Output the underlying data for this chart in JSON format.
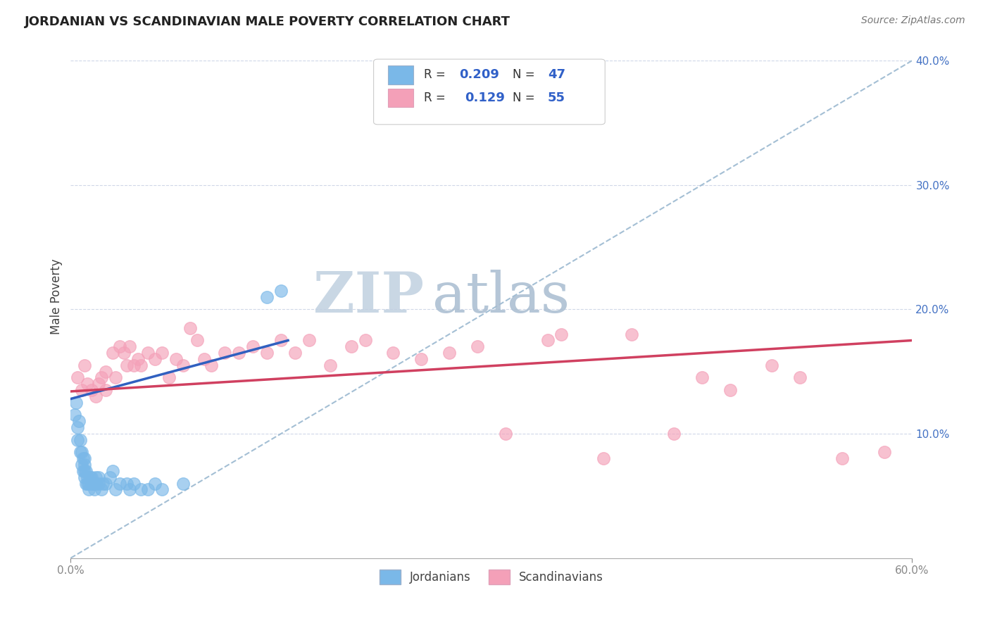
{
  "title": "JORDANIAN VS SCANDINAVIAN MALE POVERTY CORRELATION CHART",
  "source": "Source: ZipAtlas.com",
  "ylabel": "Male Poverty",
  "xlim": [
    0.0,
    0.6
  ],
  "ylim": [
    0.0,
    0.42
  ],
  "xticks": [
    0.0,
    0.1,
    0.2,
    0.3,
    0.4,
    0.5,
    0.6
  ],
  "xticklabels": [
    "0.0%",
    "",
    "",
    "",
    "",
    "",
    "60.0%"
  ],
  "yticks": [
    0.1,
    0.2,
    0.3,
    0.4
  ],
  "yticklabels": [
    "10.0%",
    "20.0%",
    "30.0%",
    "40.0%"
  ],
  "grid_color": "#d0d8e8",
  "background_color": "#ffffff",
  "jordanians_color": "#7ab8e8",
  "scandinavians_color": "#f4a0b8",
  "jordanians_label": "Jordanians",
  "scandinavians_label": "Scandinavians",
  "legend_r1": "R = 0.209",
  "legend_n1": "N = 47",
  "legend_r2": "R =  0.129",
  "legend_n2": "N = 55",
  "jordanians_x": [
    0.003,
    0.004,
    0.005,
    0.005,
    0.006,
    0.007,
    0.007,
    0.008,
    0.008,
    0.009,
    0.009,
    0.01,
    0.01,
    0.01,
    0.01,
    0.011,
    0.011,
    0.012,
    0.012,
    0.013,
    0.013,
    0.014,
    0.015,
    0.015,
    0.016,
    0.017,
    0.018,
    0.018,
    0.02,
    0.02,
    0.022,
    0.023,
    0.025,
    0.028,
    0.03,
    0.032,
    0.035,
    0.04,
    0.042,
    0.045,
    0.05,
    0.055,
    0.06,
    0.065,
    0.08,
    0.14,
    0.15
  ],
  "jordanians_y": [
    0.115,
    0.125,
    0.095,
    0.105,
    0.11,
    0.085,
    0.095,
    0.075,
    0.085,
    0.07,
    0.08,
    0.065,
    0.07,
    0.075,
    0.08,
    0.06,
    0.07,
    0.06,
    0.065,
    0.055,
    0.06,
    0.065,
    0.06,
    0.065,
    0.06,
    0.055,
    0.06,
    0.065,
    0.06,
    0.065,
    0.055,
    0.06,
    0.06,
    0.065,
    0.07,
    0.055,
    0.06,
    0.06,
    0.055,
    0.06,
    0.055,
    0.055,
    0.06,
    0.055,
    0.06,
    0.21,
    0.215
  ],
  "scandinavians_x": [
    0.005,
    0.008,
    0.01,
    0.012,
    0.015,
    0.018,
    0.02,
    0.022,
    0.025,
    0.025,
    0.03,
    0.032,
    0.035,
    0.038,
    0.04,
    0.042,
    0.045,
    0.048,
    0.05,
    0.055,
    0.06,
    0.065,
    0.07,
    0.075,
    0.08,
    0.085,
    0.09,
    0.095,
    0.1,
    0.11,
    0.12,
    0.13,
    0.14,
    0.15,
    0.16,
    0.17,
    0.185,
    0.2,
    0.21,
    0.23,
    0.25,
    0.27,
    0.29,
    0.31,
    0.34,
    0.35,
    0.38,
    0.4,
    0.43,
    0.45,
    0.47,
    0.5,
    0.52,
    0.55,
    0.58
  ],
  "scandinavians_y": [
    0.145,
    0.135,
    0.155,
    0.14,
    0.135,
    0.13,
    0.14,
    0.145,
    0.135,
    0.15,
    0.165,
    0.145,
    0.17,
    0.165,
    0.155,
    0.17,
    0.155,
    0.16,
    0.155,
    0.165,
    0.16,
    0.165,
    0.145,
    0.16,
    0.155,
    0.185,
    0.175,
    0.16,
    0.155,
    0.165,
    0.165,
    0.17,
    0.165,
    0.175,
    0.165,
    0.175,
    0.155,
    0.17,
    0.175,
    0.165,
    0.16,
    0.165,
    0.17,
    0.1,
    0.175,
    0.18,
    0.08,
    0.18,
    0.1,
    0.145,
    0.135,
    0.155,
    0.145,
    0.08,
    0.085
  ],
  "watermark_zip": "ZIP",
  "watermark_atlas": "atlas",
  "watermark_color": "#b8cce0"
}
